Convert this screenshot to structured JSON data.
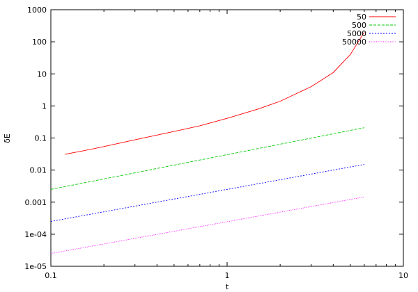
{
  "chart_data": {
    "type": "line",
    "xlabel": "t",
    "ylabel": "δE",
    "xscale": "log",
    "yscale": "log",
    "xlim": [
      0.1,
      10
    ],
    "ylim": [
      1e-05,
      1000
    ],
    "grid": false,
    "legend_position": "top-right",
    "x_ticks": [
      {
        "value": 0.1,
        "label": "0.1"
      },
      {
        "value": 1,
        "label": "1"
      },
      {
        "value": 10,
        "label": "10"
      }
    ],
    "y_ticks": [
      {
        "value": 1e-05,
        "label": "1e-05"
      },
      {
        "value": 0.0001,
        "label": "1e-04"
      },
      {
        "value": 0.001,
        "label": "0.001"
      },
      {
        "value": 0.01,
        "label": "0.01"
      },
      {
        "value": 0.1,
        "label": "0.1"
      },
      {
        "value": 1,
        "label": "1"
      },
      {
        "value": 10,
        "label": "10"
      },
      {
        "value": 100,
        "label": "100"
      },
      {
        "value": 1000,
        "label": "1000"
      }
    ],
    "series": [
      {
        "name": "50",
        "color": "#ff0000",
        "dash": "solid",
        "x": [
          0.12,
          0.15,
          0.2,
          0.3,
          0.5,
          0.7,
          1.0,
          1.5,
          2.0,
          3.0,
          4.0,
          5.0,
          6.0
        ],
        "y": [
          0.031,
          0.039,
          0.054,
          0.088,
          0.16,
          0.24,
          0.41,
          0.8,
          1.4,
          4.0,
          11,
          40,
          200
        ]
      },
      {
        "name": "500",
        "color": "#00cc00",
        "dash": "long-dash",
        "x": [
          0.1,
          6.0
        ],
        "y": [
          0.0025,
          0.21
        ]
      },
      {
        "name": "5000",
        "color": "#0000ff",
        "dash": "short-dash",
        "x": [
          0.1,
          6.0
        ],
        "y": [
          0.00025,
          0.015
        ]
      },
      {
        "name": "50000",
        "color": "#ff00ff",
        "dash": "dotted",
        "x": [
          0.1,
          6.0
        ],
        "y": [
          2.5e-05,
          0.00145
        ]
      }
    ]
  }
}
